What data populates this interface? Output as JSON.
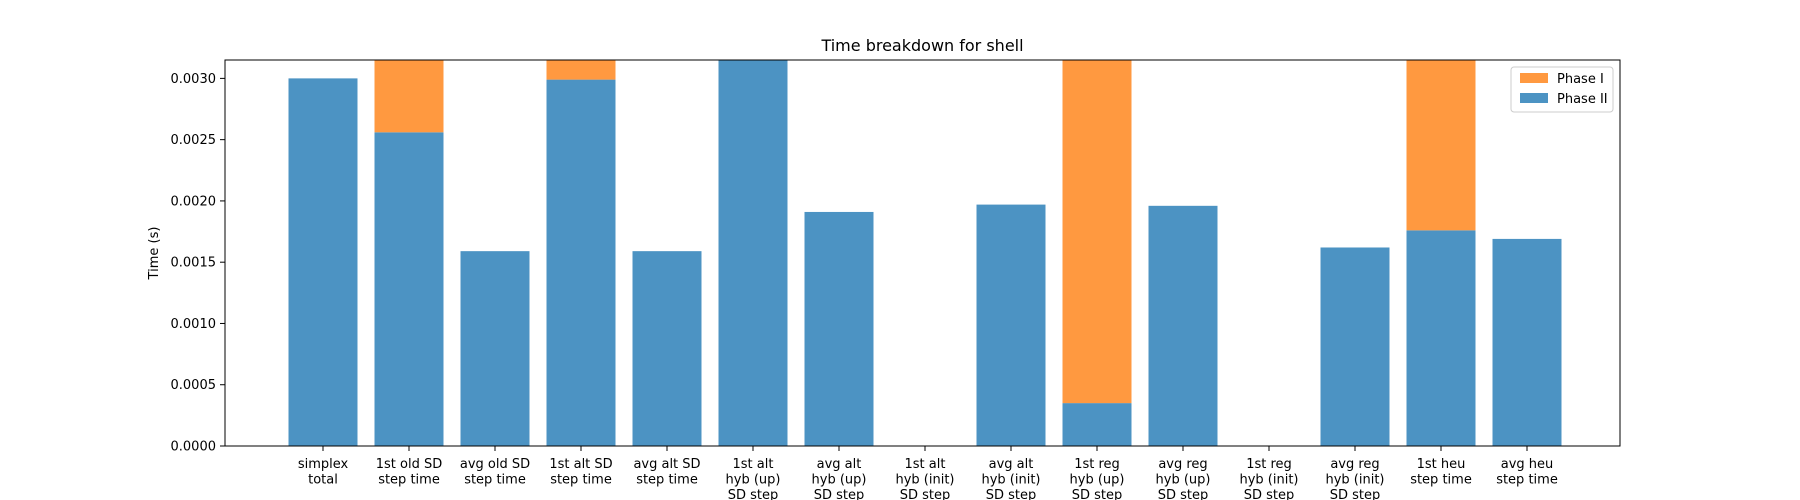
{
  "chart_data": {
    "type": "bar",
    "stacked": true,
    "title": "Time breakdown for shell",
    "xlabel": "",
    "ylabel": "Time (s)",
    "ylim": [
      0,
      0.00315
    ],
    "yticks": [
      "0.0000",
      "0.0005",
      "0.0010",
      "0.0015",
      "0.0020",
      "0.0025",
      "0.0030"
    ],
    "ytick_values": [
      0,
      0.0005,
      0.001,
      0.0015,
      0.002,
      0.0025,
      0.003
    ],
    "grid": false,
    "legend_position": "top-right",
    "categories": [
      [
        "simplex",
        "total"
      ],
      [
        "1st old SD",
        "step time"
      ],
      [
        "avg old SD",
        "step time"
      ],
      [
        "1st alt SD",
        "step time"
      ],
      [
        "avg alt SD",
        "step time"
      ],
      [
        "1st alt",
        "hyb (up)",
        "SD step"
      ],
      [
        "avg alt",
        "hyb (up)",
        "SD step"
      ],
      [
        "1st alt",
        "hyb (init)",
        "SD step"
      ],
      [
        "avg alt",
        "hyb (init)",
        "SD step"
      ],
      [
        "1st reg",
        "hyb (up)",
        "SD step"
      ],
      [
        "avg reg",
        "hyb (up)",
        "SD step"
      ],
      [
        "1st reg",
        "hyb (init)",
        "SD step"
      ],
      [
        "avg reg",
        "hyb (init)",
        "SD step"
      ],
      [
        "1st heu",
        "step time"
      ],
      [
        "avg heu",
        "step time"
      ]
    ],
    "series": [
      {
        "name": "Phase II",
        "color": "#4c93c3",
        "values": [
          0.003,
          0.00256,
          0.00159,
          0.00299,
          0.00159,
          0.0032,
          0.00191,
          0,
          0.00197,
          0.00035,
          0.00196,
          0,
          0.00162,
          0.00176,
          0.00169
        ]
      },
      {
        "name": "Phase I",
        "color": "#ff9940",
        "values": [
          0,
          0.0006,
          0,
          0.0003,
          0,
          0,
          0,
          0,
          0,
          0.0029,
          0,
          0,
          0,
          0.0015,
          0
        ]
      }
    ],
    "legend": [
      {
        "name": "Phase I",
        "color": "#ff9940"
      },
      {
        "name": "Phase II",
        "color": "#4c93c3"
      }
    ]
  }
}
